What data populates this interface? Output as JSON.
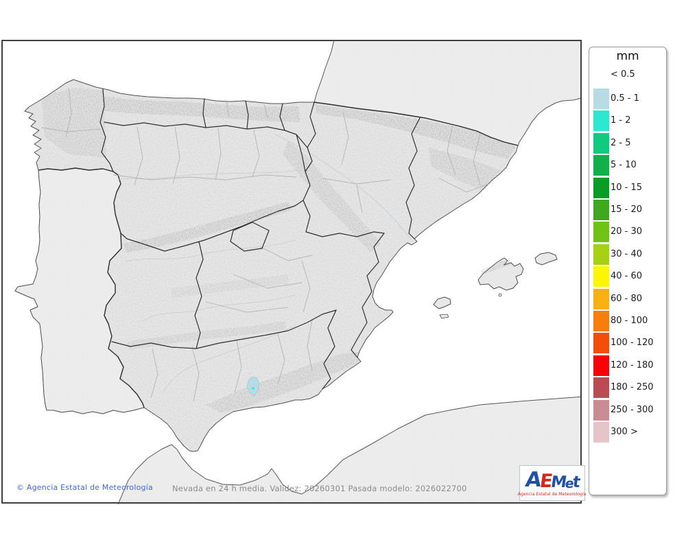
{
  "legend": {
    "title": "mm",
    "open_label": "< 0.5",
    "rows": [
      {
        "label": "0.5 - 1",
        "color": "#b7dce4"
      },
      {
        "label": "1 - 2",
        "color": "#2de8d0"
      },
      {
        "label": "2 - 5",
        "color": "#10ca7e"
      },
      {
        "label": "5 - 10",
        "color": "#12b04a"
      },
      {
        "label": "10 - 15",
        "color": "#089d26"
      },
      {
        "label": "15 - 20",
        "color": "#3fa81c"
      },
      {
        "label": "20 - 30",
        "color": "#70c214"
      },
      {
        "label": "30 - 40",
        "color": "#a6d013"
      },
      {
        "label": "40 - 60",
        "color": "#fcf603"
      },
      {
        "label": "60 - 80",
        "color": "#f9b013"
      },
      {
        "label": "80 - 100",
        "color": "#f87e0b"
      },
      {
        "label": "100 - 120",
        "color": "#f44d09"
      },
      {
        "label": "120 - 180",
        "color": "#fa0107"
      },
      {
        "label": "180 - 250",
        "color": "#ba4b53"
      },
      {
        "label": "250 - 300",
        "color": "#ca8c93"
      },
      {
        "label": "300 >",
        "color": "#e6c5c8"
      }
    ]
  },
  "footer": {
    "copyright": "© Agencia Estatal de Meteorología",
    "status": "Nevada en 24 h media. Validez: 20260301 Pasada modelo: 2026022700"
  },
  "logo": {
    "letters": [
      {
        "ch": "A",
        "color": "#2050a8",
        "size": 30
      },
      {
        "ch": "E",
        "color": "#d3281c",
        "size": 27
      },
      {
        "ch": "M",
        "color": "#2050a8",
        "size": 23
      },
      {
        "ch": "e",
        "color": "#2050a8",
        "size": 19
      },
      {
        "ch": "t",
        "color": "#2050a8",
        "size": 23
      }
    ],
    "subtitle": "Agencia Estatal de Meteorología"
  },
  "map": {
    "snow_patch": {
      "fill": "#b7dce4",
      "core_dot": "#2de8d0"
    }
  },
  "colors": {
    "sea": "#ffffff",
    "flat_land": "#ececec",
    "terrain_land": "#e8e8e8",
    "frame_border": "#3f3f3f",
    "copyright_text": "#4068d0",
    "status_text": "#8b8b8b"
  }
}
